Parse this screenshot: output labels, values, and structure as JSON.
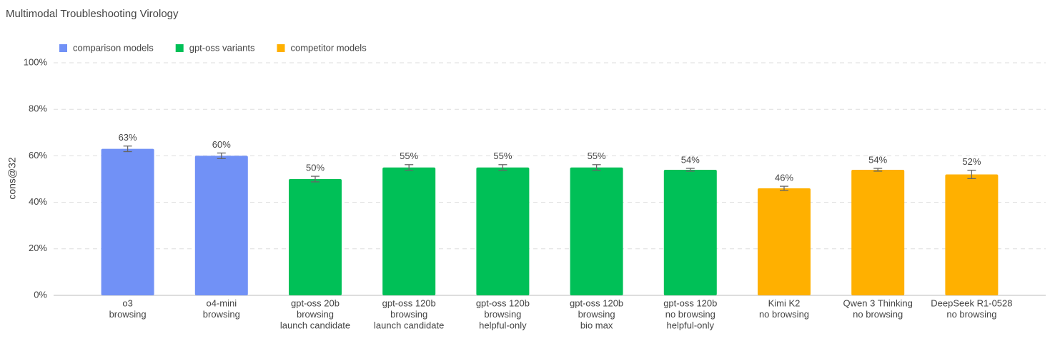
{
  "chart_data": {
    "type": "bar",
    "title": "Multimodal Troubleshooting Virology",
    "y_label": "cons@32",
    "categories": [
      [
        "o3",
        "browsing"
      ],
      [
        "o4-mini",
        "browsing"
      ],
      [
        "gpt-oss 20b",
        "browsing",
        "launch candidate"
      ],
      [
        "gpt-oss 120b",
        "browsing",
        "launch candidate"
      ],
      [
        "gpt-oss 120b",
        "browsing",
        "helpful-only"
      ],
      [
        "gpt-oss 120b",
        "browsing",
        "bio max"
      ],
      [
        "gpt-oss 120b",
        "no browsing",
        "helpful-only"
      ],
      [
        "Kimi K2",
        "no browsing"
      ],
      [
        "Qwen 3 Thinking",
        "no browsing"
      ],
      [
        "DeepSeek R1-0528",
        "no browsing"
      ]
    ],
    "series": [
      {
        "name": "comparison models",
        "color": "#7191f6",
        "values": [
          63,
          60,
          null,
          null,
          null,
          null,
          null,
          null,
          null,
          null
        ],
        "value_labels": [
          "63%",
          "60%",
          null,
          null,
          null,
          null,
          null,
          null,
          null,
          null
        ],
        "errors": [
          1.2,
          1.2,
          null,
          null,
          null,
          null,
          null,
          null,
          null,
          null
        ]
      },
      {
        "name": "gpt-oss variants",
        "color": "#00c057",
        "values": [
          null,
          null,
          50,
          55,
          55,
          55,
          54,
          null,
          null,
          null
        ],
        "value_labels": [
          null,
          null,
          "50%",
          "55%",
          "55%",
          "55%",
          "54%",
          null,
          null,
          null
        ],
        "errors": [
          null,
          null,
          1.2,
          1.2,
          1.2,
          1.2,
          0.6,
          null,
          null,
          null
        ]
      },
      {
        "name": "competitor models",
        "color": "#ffb000",
        "values": [
          null,
          null,
          null,
          null,
          null,
          null,
          null,
          46,
          54,
          52
        ],
        "value_labels": [
          null,
          null,
          null,
          null,
          null,
          null,
          null,
          "46%",
          "54%",
          "52%"
        ],
        "errors": [
          null,
          null,
          null,
          null,
          null,
          null,
          null,
          0.9,
          0.6,
          1.8
        ]
      }
    ],
    "ylim": [
      0,
      100
    ],
    "yticks": [
      {
        "value": 0,
        "label": "0%"
      },
      {
        "value": 20,
        "label": "20%"
      },
      {
        "value": 40,
        "label": "40%"
      },
      {
        "value": 60,
        "label": "60%"
      },
      {
        "value": 80,
        "label": "80%"
      },
      {
        "value": 100,
        "label": "100%"
      }
    ],
    "grid": true,
    "legend": "upper left"
  }
}
